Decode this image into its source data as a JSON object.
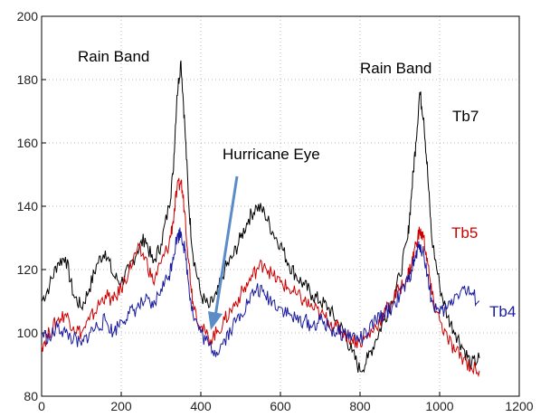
{
  "chart_data": {
    "type": "line",
    "title": "",
    "xlabel": "",
    "ylabel": "",
    "xlim": [
      0,
      1200
    ],
    "ylim": [
      80,
      200
    ],
    "xticks": [
      0,
      200,
      400,
      600,
      800,
      1000,
      1200
    ],
    "yticks": [
      80,
      100,
      120,
      140,
      160,
      180,
      200
    ],
    "grid": "dotted",
    "series": [
      {
        "name": "Tb7",
        "color": "#000000",
        "x": [
          0,
          20,
          40,
          60,
          80,
          100,
          120,
          140,
          160,
          180,
          200,
          220,
          240,
          260,
          280,
          300,
          320,
          330,
          340,
          350,
          360,
          370,
          380,
          400,
          420,
          440,
          460,
          480,
          500,
          520,
          540,
          560,
          580,
          600,
          620,
          640,
          660,
          680,
          700,
          720,
          740,
          760,
          780,
          800,
          820,
          840,
          860,
          880,
          900,
          920,
          930,
          940,
          950,
          960,
          970,
          980,
          1000,
          1020,
          1040,
          1060,
          1080,
          1100
        ],
        "values": [
          110,
          115,
          122,
          124,
          112,
          108,
          114,
          122,
          126,
          118,
          116,
          120,
          126,
          130,
          122,
          128,
          140,
          150,
          175,
          186,
          165,
          140,
          125,
          112,
          108,
          112,
          120,
          124,
          130,
          136,
          140,
          138,
          132,
          128,
          122,
          118,
          115,
          112,
          110,
          108,
          104,
          100,
          94,
          88,
          92,
          98,
          104,
          110,
          118,
          130,
          145,
          160,
          176,
          168,
          150,
          130,
          115,
          105,
          100,
          95,
          90,
          92
        ]
      },
      {
        "name": "Tb5",
        "color": "#cc0000",
        "x": [
          0,
          20,
          40,
          60,
          80,
          100,
          120,
          140,
          160,
          180,
          200,
          220,
          240,
          260,
          280,
          300,
          320,
          330,
          340,
          350,
          360,
          370,
          380,
          400,
          420,
          440,
          460,
          480,
          500,
          520,
          540,
          560,
          580,
          600,
          620,
          640,
          660,
          680,
          700,
          720,
          740,
          760,
          780,
          800,
          820,
          840,
          860,
          880,
          900,
          920,
          930,
          940,
          950,
          960,
          970,
          980,
          1000,
          1020,
          1040,
          1060,
          1080,
          1100
        ],
        "values": [
          96,
          100,
          104,
          106,
          102,
          100,
          104,
          108,
          112,
          110,
          114,
          120,
          126,
          124,
          116,
          122,
          128,
          135,
          145,
          148,
          138,
          122,
          110,
          102,
          98,
          100,
          104,
          108,
          112,
          116,
          120,
          122,
          118,
          116,
          114,
          112,
          110,
          108,
          106,
          104,
          102,
          100,
          98,
          97,
          99,
          102,
          106,
          110,
          114,
          118,
          122,
          128,
          132,
          130,
          122,
          112,
          104,
          98,
          94,
          92,
          89,
          88
        ]
      },
      {
        "name": "Tb4",
        "color": "#1a1aa0",
        "x": [
          0,
          20,
          40,
          60,
          80,
          100,
          120,
          140,
          160,
          180,
          200,
          220,
          240,
          260,
          280,
          300,
          320,
          330,
          340,
          350,
          360,
          370,
          380,
          400,
          420,
          440,
          460,
          480,
          500,
          520,
          540,
          560,
          580,
          600,
          620,
          640,
          660,
          680,
          700,
          720,
          740,
          760,
          780,
          800,
          820,
          840,
          860,
          880,
          900,
          920,
          930,
          940,
          950,
          960,
          970,
          980,
          1000,
          1020,
          1040,
          1060,
          1080,
          1100
        ],
        "values": [
          100,
          98,
          102,
          100,
          98,
          96,
          100,
          102,
          104,
          100,
          104,
          106,
          108,
          110,
          108,
          114,
          118,
          124,
          130,
          132,
          126,
          115,
          106,
          100,
          96,
          94,
          98,
          102,
          106,
          110,
          114,
          112,
          110,
          108,
          106,
          104,
          104,
          102,
          104,
          102,
          100,
          100,
          99,
          98,
          100,
          104,
          106,
          108,
          112,
          116,
          120,
          124,
          128,
          125,
          118,
          110,
          106,
          108,
          112,
          114,
          112,
          110
        ]
      }
    ],
    "annotations": {
      "rain_band_left": "Rain Band",
      "rain_band_right": "Rain Band",
      "hurricane_eye": "Hurricane Eye"
    },
    "series_labels": {
      "tb7": "Tb7",
      "tb5": "Tb5",
      "tb4": "Tb4"
    }
  }
}
